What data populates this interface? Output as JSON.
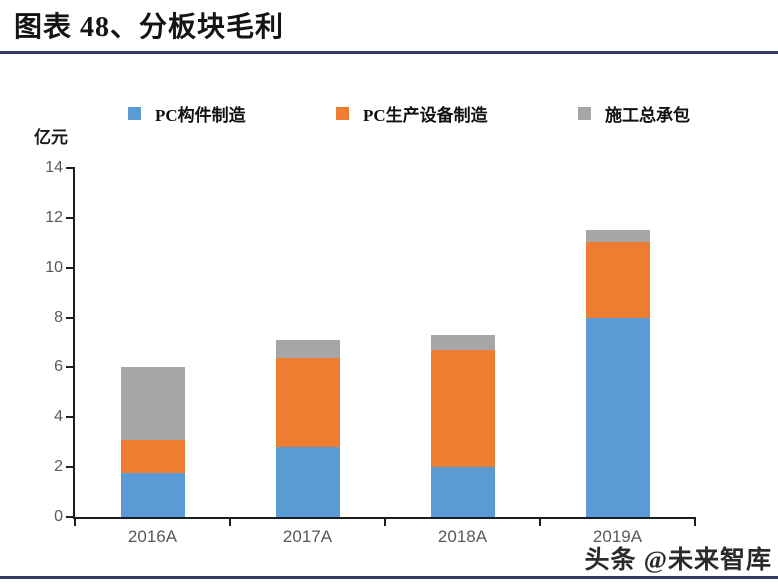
{
  "header": {
    "title": "图表 48、分板块毛利"
  },
  "accent_colors": {
    "rule": "#373763",
    "axis": "#1d1d1d",
    "tick_label": "#595959"
  },
  "watermark": {
    "text": "头条 @未来智库"
  },
  "chart_data": {
    "type": "bar",
    "stacked": true,
    "title": "分板块毛利",
    "unit_label": "亿元",
    "categories": [
      "2016A",
      "2017A",
      "2018A",
      "2019A"
    ],
    "series": [
      {
        "name": "PC构件制造",
        "color": "#5B9BD5",
        "values": [
          1.75,
          2.8,
          2.0,
          8.0
        ]
      },
      {
        "name": "PC生产设备制造",
        "color": "#ED7D31",
        "values": [
          1.35,
          3.6,
          4.7,
          3.05
        ]
      },
      {
        "name": "施工总承包",
        "color": "#A6A6A6",
        "values": [
          2.9,
          0.7,
          0.6,
          0.45
        ]
      }
    ],
    "totals": [
      6.0,
      7.1,
      7.3,
      11.5
    ],
    "xlabel": "",
    "ylabel": "亿元",
    "ylim": [
      0,
      14
    ],
    "yticks": [
      0,
      2,
      4,
      6,
      8,
      10,
      12,
      14
    ],
    "legend_position": "top",
    "grid": false
  }
}
